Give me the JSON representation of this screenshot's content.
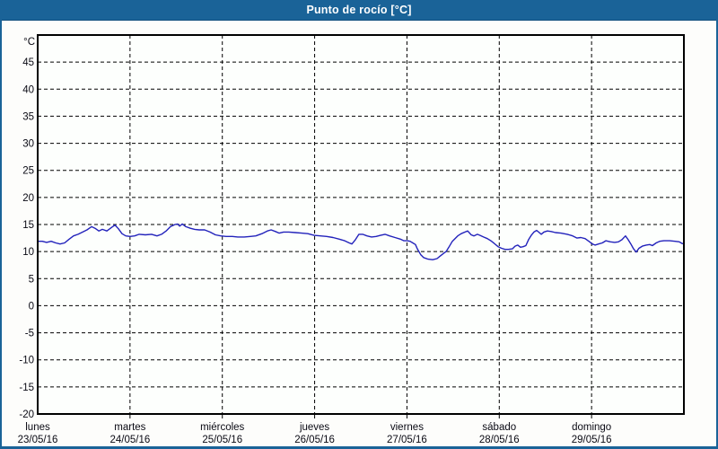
{
  "window": {
    "title": "Punto de rocío [°C]"
  },
  "colors": {
    "frame_blue": "#1a6398",
    "frame_blue_dark": "#114e7d",
    "series_blue": "#2222bb",
    "grid_color": "#000000",
    "plot_border": "#000000",
    "plot_bg": "#fdfffd",
    "label_color": "#0a0a14",
    "title_text": "#ffffff"
  },
  "chart_data": {
    "type": "line",
    "title": "Punto de rocío [°C]",
    "y_unit_label": "°C",
    "ylim": [
      -20,
      50
    ],
    "y_ticks": [
      45,
      40,
      35,
      30,
      25,
      20,
      15,
      10,
      5,
      0,
      -5,
      -10,
      -15,
      -20
    ],
    "grid": "dashed",
    "legend_position": "none",
    "x_axis": {
      "total_hours": 168,
      "days": [
        {
          "name": "lunes",
          "date": "23/05/16"
        },
        {
          "name": "martes",
          "date": "24/05/16"
        },
        {
          "name": "miércoles",
          "date": "25/05/16"
        },
        {
          "name": "jueves",
          "date": "26/05/16"
        },
        {
          "name": "viernes",
          "date": "27/05/16"
        },
        {
          "name": "sábado",
          "date": "28/05/16"
        },
        {
          "name": "domingo",
          "date": "29/05/16"
        }
      ]
    },
    "series": [
      {
        "name": "Punto de rocío",
        "color": "#2222bb",
        "x_hours": [
          0,
          1.2,
          2.3,
          3.5,
          4.7,
          5.8,
          7,
          8.2,
          9.3,
          10.5,
          11.7,
          12.8,
          14,
          14.9,
          15.9,
          16.8,
          18,
          19.1,
          20.1,
          21,
          21.9,
          22.9,
          24,
          25.2,
          26.4,
          28,
          29.6,
          31,
          32.2,
          33.4,
          34.5,
          35.7,
          36.4,
          36.9,
          37.6,
          38.5,
          39.7,
          40.8,
          42,
          43.4,
          44.8,
          46.2,
          47.6,
          49,
          50.6,
          52,
          53.7,
          55.3,
          56.7,
          58.3,
          59.7,
          60.7,
          61.8,
          62.8,
          63.9,
          65.3,
          67,
          68.6,
          70.2,
          71.9,
          73.5,
          75.1,
          76.8,
          78.4,
          79.8,
          81,
          81.7,
          82.6,
          83.5,
          84.5,
          85.6,
          86.8,
          88,
          89.1,
          90.3,
          91.5,
          92.9,
          94.3,
          95.2,
          96.1,
          96.8,
          97.5,
          98.2,
          98.7,
          99.6,
          100.3,
          101.5,
          102.7,
          103.8,
          104.5,
          105.4,
          106.2,
          106.9,
          107.8,
          108.5,
          109.2,
          110.1,
          111.1,
          111.8,
          112.7,
          113.4,
          114.3,
          115,
          115.9,
          116.9,
          117.8,
          118.7,
          119.7,
          120.6,
          121.5,
          122.4,
          123.4,
          124.1,
          124.8,
          125.5,
          126.2,
          126.9,
          127.6,
          128.3,
          129,
          129.7,
          130.4,
          130.9,
          131.6,
          132.5,
          133.5,
          134.6,
          136,
          137.7,
          139.1,
          140.2,
          141.2,
          142.3,
          143.3,
          144.2,
          144.9,
          145.8,
          146.8,
          147.7,
          148.9,
          150,
          151,
          151.9,
          152.8,
          153.5,
          154.2,
          154.9,
          155.6,
          156.3,
          157.2,
          158.2,
          159.1,
          159.8,
          160.8,
          161.7,
          162.8,
          164.3,
          165.7,
          166.8,
          167.5,
          168
        ],
        "values_c": [
          11.9,
          11.9,
          11.7,
          11.9,
          11.6,
          11.4,
          11.6,
          12.3,
          12.9,
          13.2,
          13.6,
          14,
          14.6,
          14.3,
          13.8,
          14.1,
          13.8,
          14.4,
          14.9,
          14.2,
          13.3,
          12.9,
          12.8,
          12.9,
          13.2,
          13.1,
          13.2,
          12.9,
          13.2,
          13.8,
          14.6,
          15,
          15.1,
          14.7,
          15.1,
          14.6,
          14.3,
          14.1,
          14,
          14,
          13.6,
          13.1,
          12.9,
          12.8,
          12.8,
          12.7,
          12.7,
          12.8,
          12.9,
          13.3,
          13.8,
          14,
          13.7,
          13.4,
          13.6,
          13.6,
          13.5,
          13.4,
          13.3,
          13,
          12.9,
          12.8,
          12.6,
          12.3,
          12,
          11.6,
          11.4,
          12.2,
          13.2,
          13.2,
          12.9,
          12.7,
          12.8,
          13,
          13.2,
          12.9,
          12.6,
          12.3,
          12,
          12,
          11.9,
          11.6,
          11.3,
          10.5,
          9.4,
          8.9,
          8.6,
          8.5,
          8.7,
          9.1,
          9.6,
          10,
          10.8,
          11.9,
          12.4,
          12.9,
          13.3,
          13.6,
          13.8,
          13.1,
          12.9,
          13.2,
          13,
          12.7,
          12.4,
          12,
          11.5,
          10.9,
          10.6,
          10.4,
          10.4,
          10.5,
          11,
          11.2,
          10.8,
          10.9,
          11.1,
          12.2,
          13,
          13.6,
          13.9,
          13.5,
          13.2,
          13.6,
          13.8,
          13.7,
          13.5,
          13.4,
          13.2,
          12.9,
          12.5,
          12.6,
          12.4,
          11.9,
          11.4,
          11.2,
          11.4,
          11.6,
          12,
          11.8,
          11.7,
          11.8,
          12.2,
          12.9,
          12.2,
          11.4,
          10.5,
          9.9,
          10.6,
          11,
          11.2,
          11.3,
          11.1,
          11.6,
          11.9,
          12,
          12,
          11.9,
          11.8,
          11.5,
          11.4
        ]
      }
    ]
  }
}
